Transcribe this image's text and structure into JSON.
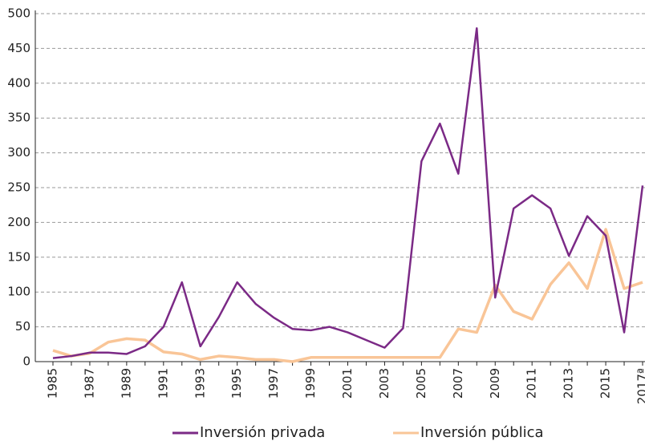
{
  "chart_data": {
    "type": "line",
    "categories": [
      "1985",
      null,
      "1987",
      null,
      "1989",
      null,
      "1991",
      null,
      "1993",
      null,
      "1995",
      null,
      "1997",
      null,
      "1999",
      null,
      "2001",
      null,
      "2003",
      null,
      "2005",
      null,
      "2007",
      null,
      "2009",
      null,
      "2011",
      null,
      "2013",
      null,
      "2015",
      null,
      "2017ª"
    ],
    "series": [
      {
        "name": "Inversión privada",
        "color": "#7b2a86",
        "values": [
          5,
          8,
          13,
          13,
          11,
          22,
          50,
          114,
          22,
          64,
          114,
          83,
          63,
          47,
          45,
          50,
          42,
          31,
          20,
          48,
          288,
          342,
          270,
          479,
          92,
          220,
          239,
          220,
          152,
          209,
          181,
          42,
          253
        ]
      },
      {
        "name": "Inversión pública",
        "color": "#f9c597",
        "values": [
          16,
          8,
          12,
          28,
          33,
          31,
          14,
          11,
          3,
          8,
          6,
          3,
          3,
          0,
          6,
          6,
          6,
          6,
          6,
          6,
          6,
          6,
          47,
          42,
          110,
          72,
          61,
          111,
          142,
          105,
          190,
          105,
          114
        ]
      }
    ],
    "ylim": [
      0,
      500
    ],
    "yticks": [
      0,
      50,
      100,
      150,
      200,
      250,
      300,
      350,
      400,
      450,
      500
    ],
    "grid": true,
    "legend": "bottom"
  }
}
